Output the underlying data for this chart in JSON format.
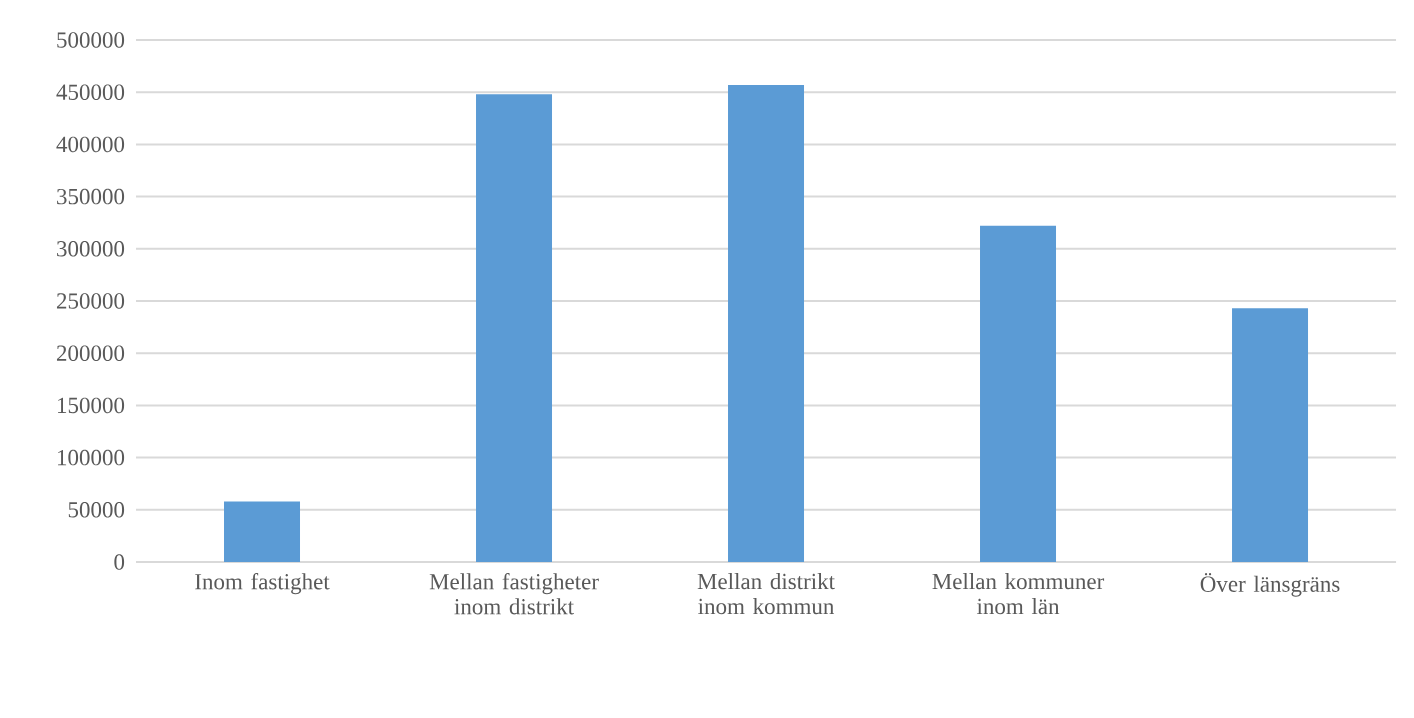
{
  "chart_data": {
    "type": "bar",
    "categories": [
      "Inom fastighet",
      "Mellan fastigheter inom distrikt",
      "Mellan distrikt inom kommun",
      "Mellan kommuner inom län",
      "Över länsgräns"
    ],
    "values": [
      58000,
      448000,
      457000,
      322000,
      243000
    ],
    "color": "#5b9bd5",
    "ylim": [
      0,
      500000
    ],
    "yticks": [
      0,
      50000,
      100000,
      150000,
      200000,
      250000,
      300000,
      350000,
      400000,
      450000,
      500000
    ],
    "grid": "y"
  }
}
